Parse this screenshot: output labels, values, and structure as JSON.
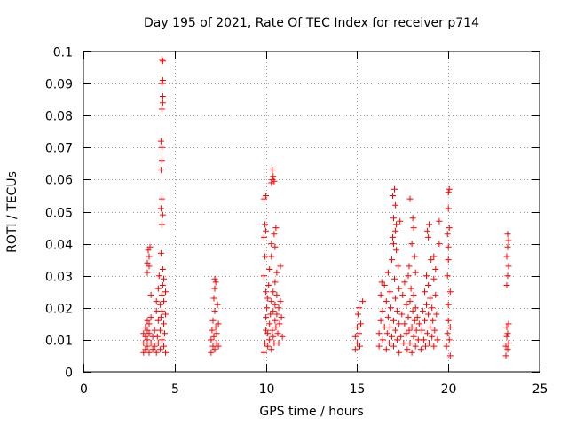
{
  "chart_data": {
    "type": "scatter",
    "title": "Day 195 of 2021, Rate Of TEC Index for receiver p714",
    "xlabel": "GPS time / hours",
    "ylabel": "ROTI / TECUs",
    "xlim": [
      0,
      25
    ],
    "ylim": [
      0,
      0.1
    ],
    "xticks": [
      0,
      5,
      10,
      15,
      20,
      25
    ],
    "xtick_labels": [
      "0",
      "5",
      "10",
      "15",
      "20",
      "25"
    ],
    "yticks": [
      0,
      0.01,
      0.02,
      0.03,
      0.04,
      0.05,
      0.06,
      0.07,
      0.08,
      0.09,
      0.1
    ],
    "ytick_labels": [
      "0",
      "0.01",
      "0.02",
      "0.03",
      "0.04",
      "0.05",
      "0.06",
      "0.07",
      "0.08",
      "0.09",
      "0.1"
    ],
    "grid": true,
    "marker": "+",
    "color": "#ff0000",
    "series": [
      {
        "name": "ROTI",
        "points": [
          [
            3.3,
            0.006
          ],
          [
            3.3,
            0.009
          ],
          [
            3.3,
            0.012
          ],
          [
            3.4,
            0.014
          ],
          [
            3.4,
            0.007
          ],
          [
            3.4,
            0.011
          ],
          [
            3.5,
            0.016
          ],
          [
            3.5,
            0.008
          ],
          [
            3.5,
            0.013
          ],
          [
            3.5,
            0.01
          ],
          [
            3.6,
            0.006
          ],
          [
            3.6,
            0.015
          ],
          [
            3.6,
            0.012
          ],
          [
            3.7,
            0.009
          ],
          [
            3.7,
            0.017
          ],
          [
            3.7,
            0.024
          ],
          [
            3.8,
            0.011
          ],
          [
            3.8,
            0.007
          ],
          [
            3.5,
            0.034
          ],
          [
            3.55,
            0.038
          ],
          [
            3.6,
            0.036
          ],
          [
            3.5,
            0.031
          ],
          [
            3.65,
            0.039
          ],
          [
            3.6,
            0.033
          ],
          [
            3.9,
            0.008
          ],
          [
            3.9,
            0.013
          ],
          [
            4.0,
            0.019
          ],
          [
            4.0,
            0.006
          ],
          [
            4.0,
            0.022
          ],
          [
            4.05,
            0.011
          ],
          [
            4.1,
            0.016
          ],
          [
            4.1,
            0.026
          ],
          [
            4.1,
            0.009
          ],
          [
            4.15,
            0.03
          ],
          [
            4.2,
            0.013
          ],
          [
            4.2,
            0.021
          ],
          [
            4.2,
            0.007
          ],
          [
            4.25,
            0.017
          ],
          [
            4.3,
            0.01
          ],
          [
            4.3,
            0.024
          ],
          [
            4.3,
            0.019
          ],
          [
            4.35,
            0.027
          ],
          [
            4.4,
            0.015
          ],
          [
            4.4,
            0.008
          ],
          [
            4.4,
            0.022
          ],
          [
            4.45,
            0.012
          ],
          [
            4.5,
            0.018
          ],
          [
            4.5,
            0.025
          ],
          [
            4.5,
            0.006
          ],
          [
            4.35,
            0.032
          ],
          [
            4.4,
            0.029
          ],
          [
            4.25,
            0.037
          ],
          [
            4.3,
            0.046
          ],
          [
            4.35,
            0.049
          ],
          [
            4.25,
            0.051
          ],
          [
            4.3,
            0.054
          ],
          [
            4.25,
            0.063
          ],
          [
            4.3,
            0.066
          ],
          [
            4.3,
            0.07
          ],
          [
            4.25,
            0.072
          ],
          [
            4.3,
            0.082
          ],
          [
            4.35,
            0.084
          ],
          [
            4.35,
            0.086
          ],
          [
            4.3,
            0.09
          ],
          [
            4.35,
            0.091
          ],
          [
            4.35,
            0.097
          ],
          [
            4.3,
            0.0975
          ],
          [
            7.0,
            0.006
          ],
          [
            7.0,
            0.01
          ],
          [
            7.05,
            0.013
          ],
          [
            7.1,
            0.008
          ],
          [
            7.1,
            0.016
          ],
          [
            7.15,
            0.011
          ],
          [
            7.2,
            0.019
          ],
          [
            7.2,
            0.007
          ],
          [
            7.25,
            0.014
          ],
          [
            7.3,
            0.009
          ],
          [
            7.3,
            0.012
          ],
          [
            7.35,
            0.021
          ],
          [
            7.4,
            0.008
          ],
          [
            7.4,
            0.015
          ],
          [
            7.2,
            0.026
          ],
          [
            7.25,
            0.028
          ],
          [
            7.2,
            0.029
          ],
          [
            7.15,
            0.023
          ],
          [
            9.9,
            0.042
          ],
          [
            9.95,
            0.046
          ],
          [
            10.0,
            0.044
          ],
          [
            9.9,
            0.054
          ],
          [
            10.0,
            0.055
          ],
          [
            9.95,
            0.036
          ],
          [
            9.9,
            0.03
          ],
          [
            10.0,
            0.025
          ],
          [
            9.9,
            0.006
          ],
          [
            9.95,
            0.009
          ],
          [
            10.0,
            0.013
          ],
          [
            10.0,
            0.017
          ],
          [
            10.05,
            0.02
          ],
          [
            10.1,
            0.008
          ],
          [
            10.1,
            0.012
          ],
          [
            10.1,
            0.023
          ],
          [
            10.15,
            0.027
          ],
          [
            10.2,
            0.01
          ],
          [
            10.2,
            0.015
          ],
          [
            10.2,
            0.032
          ],
          [
            10.25,
            0.018
          ],
          [
            10.3,
            0.007
          ],
          [
            10.3,
            0.022
          ],
          [
            10.3,
            0.036
          ],
          [
            10.35,
            0.013
          ],
          [
            10.4,
            0.019
          ],
          [
            10.4,
            0.011
          ],
          [
            10.4,
            0.025
          ],
          [
            10.45,
            0.009
          ],
          [
            10.5,
            0.016
          ],
          [
            10.5,
            0.028
          ],
          [
            10.5,
            0.021
          ],
          [
            10.55,
            0.014
          ],
          [
            10.6,
            0.018
          ],
          [
            10.6,
            0.024
          ],
          [
            10.6,
            0.031
          ],
          [
            10.65,
            0.012
          ],
          [
            10.7,
            0.02
          ],
          [
            10.7,
            0.009
          ],
          [
            10.75,
            0.015
          ],
          [
            10.8,
            0.022
          ],
          [
            10.8,
            0.033
          ],
          [
            10.85,
            0.017
          ],
          [
            10.9,
            0.011
          ],
          [
            10.3,
            0.04
          ],
          [
            10.45,
            0.043
          ],
          [
            10.5,
            0.039
          ],
          [
            10.55,
            0.045
          ],
          [
            10.3,
            0.059
          ],
          [
            10.35,
            0.06
          ],
          [
            10.4,
            0.061
          ],
          [
            10.35,
            0.063
          ],
          [
            10.45,
            0.0595
          ],
          [
            14.9,
            0.007
          ],
          [
            14.9,
            0.011
          ],
          [
            15.0,
            0.014
          ],
          [
            15.0,
            0.009
          ],
          [
            15.05,
            0.018
          ],
          [
            15.1,
            0.012
          ],
          [
            15.1,
            0.02
          ],
          [
            15.15,
            0.008
          ],
          [
            15.2,
            0.015
          ],
          [
            15.3,
            0.022
          ],
          [
            16.2,
            0.008
          ],
          [
            16.2,
            0.012
          ],
          [
            16.3,
            0.016
          ],
          [
            16.3,
            0.024
          ],
          [
            16.35,
            0.028
          ],
          [
            16.4,
            0.01
          ],
          [
            16.4,
            0.019
          ],
          [
            16.5,
            0.014
          ],
          [
            16.5,
            0.027
          ],
          [
            16.6,
            0.007
          ],
          [
            16.6,
            0.022
          ],
          [
            16.65,
            0.012
          ],
          [
            16.7,
            0.017
          ],
          [
            16.7,
            0.031
          ],
          [
            16.75,
            0.009
          ],
          [
            16.8,
            0.025
          ],
          [
            16.8,
            0.014
          ],
          [
            16.85,
            0.02
          ],
          [
            16.9,
            0.035
          ],
          [
            16.9,
            0.011
          ],
          [
            16.95,
            0.042
          ],
          [
            17.0,
            0.016
          ],
          [
            17.0,
            0.008
          ],
          [
            17.05,
            0.029
          ],
          [
            17.1,
            0.013
          ],
          [
            17.1,
            0.023
          ],
          [
            17.15,
            0.046
          ],
          [
            17.2,
            0.01
          ],
          [
            17.2,
            0.019
          ],
          [
            17.25,
            0.033
          ],
          [
            17.3,
            0.015
          ],
          [
            17.3,
            0.026
          ],
          [
            17.35,
            0.047
          ],
          [
            17.0,
            0.048
          ],
          [
            16.95,
            0.055
          ],
          [
            17.05,
            0.057
          ],
          [
            17.1,
            0.052
          ],
          [
            17.0,
            0.04
          ],
          [
            17.15,
            0.038
          ],
          [
            17.1,
            0.044
          ],
          [
            17.3,
            0.006
          ],
          [
            17.4,
            0.011
          ],
          [
            17.45,
            0.018
          ],
          [
            17.5,
            0.024
          ],
          [
            17.55,
            0.009
          ],
          [
            17.6,
            0.015
          ],
          [
            17.6,
            0.028
          ],
          [
            17.7,
            0.012
          ],
          [
            17.7,
            0.021
          ],
          [
            17.75,
            0.007
          ],
          [
            17.8,
            0.017
          ],
          [
            17.8,
            0.03
          ],
          [
            17.85,
            0.013
          ],
          [
            17.9,
            0.022
          ],
          [
            17.9,
            0.009
          ],
          [
            17.95,
            0.026
          ],
          [
            18.0,
            0.014
          ],
          [
            18.0,
            0.006
          ],
          [
            18.05,
            0.019
          ],
          [
            18.1,
            0.011
          ],
          [
            18.1,
            0.024
          ],
          [
            18.15,
            0.016
          ],
          [
            18.2,
            0.008
          ],
          [
            18.2,
            0.02
          ],
          [
            18.25,
            0.013
          ],
          [
            18.3,
            0.017
          ],
          [
            18.35,
            0.01
          ],
          [
            18.4,
            0.015
          ],
          [
            17.9,
            0.054
          ],
          [
            18.05,
            0.048
          ],
          [
            18.1,
            0.045
          ],
          [
            18.0,
            0.04
          ],
          [
            18.15,
            0.036
          ],
          [
            17.85,
            0.033
          ],
          [
            18.2,
            0.031
          ],
          [
            18.5,
            0.007
          ],
          [
            18.55,
            0.013
          ],
          [
            18.6,
            0.019
          ],
          [
            18.65,
            0.01
          ],
          [
            18.7,
            0.025
          ],
          [
            18.7,
            0.016
          ],
          [
            18.75,
            0.008
          ],
          [
            18.8,
            0.021
          ],
          [
            18.8,
            0.03
          ],
          [
            18.85,
            0.012
          ],
          [
            18.9,
            0.018
          ],
          [
            18.9,
            0.027
          ],
          [
            18.95,
            0.009
          ],
          [
            19.0,
            0.014
          ],
          [
            19.0,
            0.023
          ],
          [
            19.05,
            0.035
          ],
          [
            19.1,
            0.011
          ],
          [
            19.1,
            0.02
          ],
          [
            19.15,
            0.016
          ],
          [
            19.2,
            0.029
          ],
          [
            19.2,
            0.008
          ],
          [
            19.25,
            0.013
          ],
          [
            19.3,
            0.024
          ],
          [
            19.35,
            0.018
          ],
          [
            19.4,
            0.01
          ],
          [
            18.9,
            0.042
          ],
          [
            18.95,
            0.046
          ],
          [
            18.85,
            0.044
          ],
          [
            19.2,
            0.036
          ],
          [
            19.3,
            0.032
          ],
          [
            19.5,
            0.047
          ],
          [
            19.5,
            0.04
          ],
          [
            19.9,
            0.008
          ],
          [
            19.95,
            0.012
          ],
          [
            20.0,
            0.016
          ],
          [
            20.0,
            0.021
          ],
          [
            20.05,
            0.01
          ],
          [
            20.1,
            0.025
          ],
          [
            20.1,
            0.014
          ],
          [
            19.95,
            0.03
          ],
          [
            20.0,
            0.035
          ],
          [
            20.0,
            0.039
          ],
          [
            19.95,
            0.043
          ],
          [
            20.05,
            0.045
          ],
          [
            20.0,
            0.051
          ],
          [
            20.05,
            0.057
          ],
          [
            20.0,
            0.056
          ],
          [
            20.1,
            0.005
          ],
          [
            23.15,
            0.005
          ],
          [
            23.15,
            0.008
          ],
          [
            23.2,
            0.011
          ],
          [
            23.2,
            0.014
          ],
          [
            23.25,
            0.007
          ],
          [
            23.25,
            0.012
          ],
          [
            23.3,
            0.009
          ],
          [
            23.3,
            0.015
          ],
          [
            23.2,
            0.027
          ],
          [
            23.25,
            0.03
          ],
          [
            23.3,
            0.033
          ],
          [
            23.2,
            0.036
          ],
          [
            23.25,
            0.039
          ],
          [
            23.3,
            0.041
          ],
          [
            23.25,
            0.043
          ]
        ]
      }
    ]
  }
}
